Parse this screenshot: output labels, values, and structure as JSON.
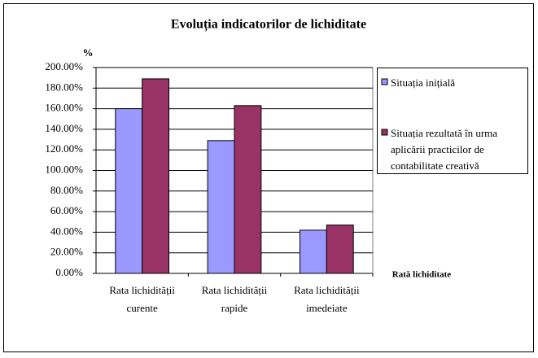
{
  "chart_data": {
    "type": "bar",
    "title": "Evoluția indicatorilor de lichiditate",
    "y_label": "%",
    "x_label": "Rată lichiditate",
    "categories": [
      "Rata lichidității curente",
      "Rata lichidității rapide",
      "Rata lichidității imedeiate"
    ],
    "series": [
      {
        "name": "Situația inițială",
        "color": "#9999ff",
        "values": [
          160,
          129,
          42
        ]
      },
      {
        "name": "Situația rezultată în urma aplicării practicilor de contabilitate creativă",
        "color": "#993366",
        "values": [
          189,
          163,
          47
        ]
      }
    ],
    "ylim": [
      0,
      200
    ],
    "yticks": [
      {
        "value": 0,
        "label": "0.00%"
      },
      {
        "value": 20,
        "label": "20.00%"
      },
      {
        "value": 40,
        "label": "40.00%"
      },
      {
        "value": 60,
        "label": "60.00%"
      },
      {
        "value": 80,
        "label": "80.00%"
      },
      {
        "value": 100,
        "label": "100.00%"
      },
      {
        "value": 120,
        "label": "120.00%"
      },
      {
        "value": 140,
        "label": "140.00%"
      },
      {
        "value": 160,
        "label": "160.00%"
      },
      {
        "value": 180,
        "label": "180.00%"
      },
      {
        "value": 200,
        "label": "200.00%"
      }
    ],
    "grid": true
  }
}
